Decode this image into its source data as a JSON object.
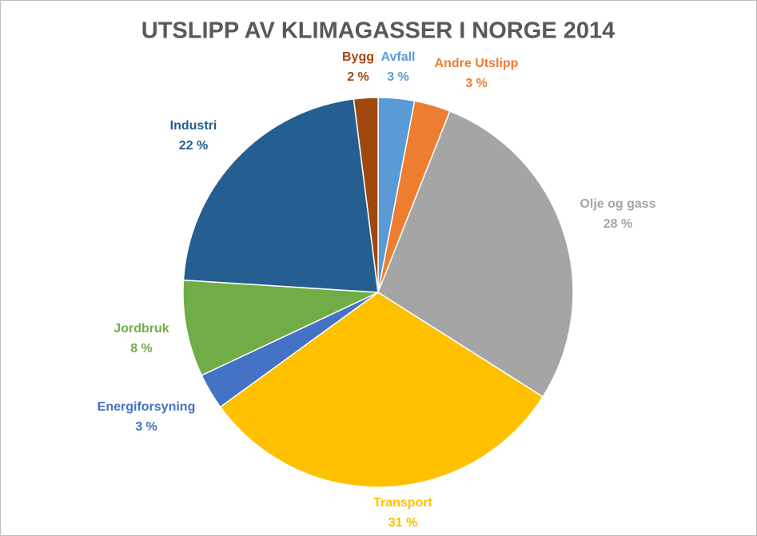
{
  "chart_data": {
    "type": "pie",
    "title": "UTSLIPP AV KLIMAGASSER I NORGE 2014",
    "categories": [
      "Avfall",
      "Andre Utslipp",
      "Olje og gass",
      "Transport",
      "Energiforsyning",
      "Jordbruk",
      "Industri",
      "Bygg"
    ],
    "values": [
      3,
      3,
      28,
      31,
      3,
      8,
      22,
      2
    ],
    "value_labels": [
      "3 %",
      "3 %",
      "28 %",
      "31 %",
      "3 %",
      "8 %",
      "22 %",
      "2 %"
    ],
    "colors": [
      "#5b9bd5",
      "#ed7d31",
      "#a5a5a5",
      "#ffc000",
      "#4472c4",
      "#70ad47",
      "#255e91",
      "#9e480e"
    ]
  }
}
